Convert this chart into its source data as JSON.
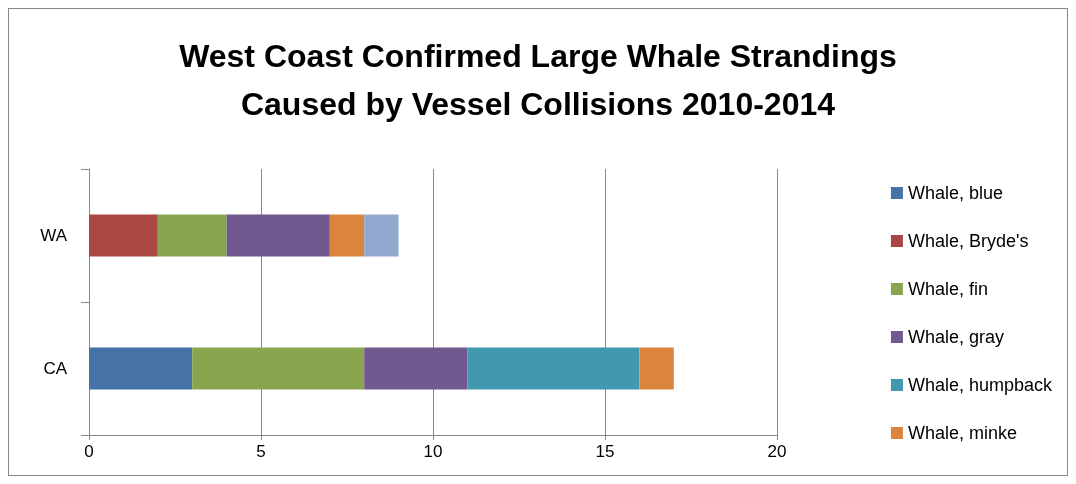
{
  "chart_data": {
    "type": "bar",
    "title": "West Coast Confirmed Large Whale Strandings\nCaused by Vessel Collisions 2010-2014",
    "orientation": "horizontal",
    "stacked": true,
    "categories": [
      "WA",
      "CA"
    ],
    "series": [
      {
        "name": "Whale, blue",
        "color": "#4572a7",
        "values": [
          0,
          3
        ]
      },
      {
        "name": "Whale, Bryde's",
        "color": "#aa4643",
        "values": [
          2,
          0
        ]
      },
      {
        "name": "Whale, fin",
        "color": "#89a54e",
        "values": [
          2,
          5
        ]
      },
      {
        "name": "Whale, gray",
        "color": "#71588f",
        "values": [
          3,
          3
        ]
      },
      {
        "name": "Whale, humpback",
        "color": "#4198af",
        "values": [
          0,
          5
        ]
      },
      {
        "name": "Whale, minke",
        "color": "#db843d",
        "values": [
          1,
          1
        ]
      },
      {
        "color": "#93a9cf",
        "values": [
          1,
          0
        ]
      }
    ],
    "xlim": [
      0,
      20
    ],
    "xticks": [
      0,
      5,
      10,
      15,
      20
    ],
    "grid": "x",
    "legend": "right"
  }
}
